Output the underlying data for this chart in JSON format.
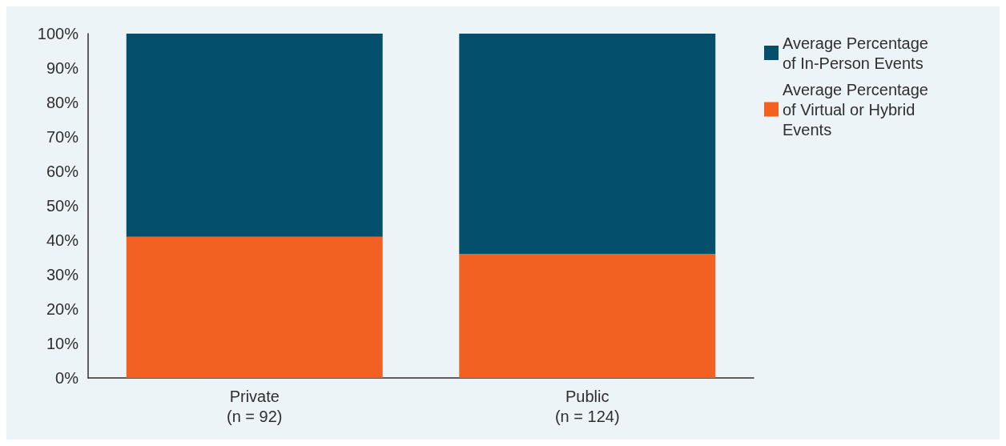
{
  "chart_data": {
    "type": "bar",
    "categories": [
      "Private\n(n = 92)",
      "Public\n(n = 124)"
    ],
    "series": [
      {
        "name": "Average Percentage of Virtual or Hybrid Events",
        "color": "#f26122",
        "values": [
          41,
          36
        ]
      },
      {
        "name": "Average Percentage of In-Person Events",
        "color": "#044f6b",
        "values": [
          59,
          64
        ]
      }
    ],
    "stacked": true,
    "ylim": [
      0,
      100
    ],
    "yticks": [
      {
        "value": 0,
        "label": "0%"
      },
      {
        "value": 10,
        "label": "10%"
      },
      {
        "value": 20,
        "label": "20%"
      },
      {
        "value": 30,
        "label": "30%"
      },
      {
        "value": 40,
        "label": "40%"
      },
      {
        "value": 50,
        "label": "50%"
      },
      {
        "value": 60,
        "label": "60%"
      },
      {
        "value": 70,
        "label": "70%"
      },
      {
        "value": 80,
        "label": "80%"
      },
      {
        "value": 90,
        "label": "90%"
      },
      {
        "value": 100,
        "label": "100%"
      }
    ],
    "grid": false,
    "legend": "top right"
  }
}
